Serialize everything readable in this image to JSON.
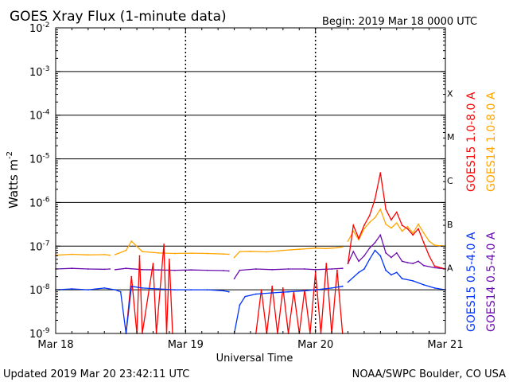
{
  "header": {
    "title": "GOES Xray Flux (1-minute data)",
    "begin": "Begin:  2019 Mar 18 0000 UTC"
  },
  "footer": {
    "updated": "Updated 2019 Mar 20 23:42:11 UTC",
    "credit": "NOAA/SWPC Boulder, CO USA"
  },
  "colors": {
    "goes15_long": "#ff0000",
    "goes14_long": "#ffa500",
    "goes15_short": "#0033ff",
    "goes14_short": "#6a0dad",
    "grid": "#000000"
  },
  "chart_data": {
    "type": "line",
    "title": "GOES Xray Flux (1-minute data)",
    "xlabel": "Universal Time",
    "ylabel": "Watts m",
    "ylabel_sup": "-2",
    "yscale": "log",
    "ylim": [
      1e-09,
      0.01
    ],
    "xlim": [
      0,
      72
    ],
    "x_unit": "hours since 2019 Mar 18 0000 UTC",
    "x_ticks": [
      {
        "x": 0,
        "label": "Mar 18"
      },
      {
        "x": 24,
        "label": "Mar 19"
      },
      {
        "x": 48,
        "label": "Mar 20"
      },
      {
        "x": 72,
        "label": "Mar 21"
      }
    ],
    "y_ticks": [
      {
        "exp": -2,
        "label": "10",
        "sup": "-2"
      },
      {
        "exp": -3,
        "label": "10",
        "sup": "-3"
      },
      {
        "exp": -4,
        "label": "10",
        "sup": "-4"
      },
      {
        "exp": -5,
        "label": "10",
        "sup": "-5"
      },
      {
        "exp": -6,
        "label": "10",
        "sup": "-6"
      },
      {
        "exp": -7,
        "label": "10",
        "sup": "-7"
      },
      {
        "exp": -8,
        "label": "10",
        "sup": "-8"
      },
      {
        "exp": -9,
        "label": "10",
        "sup": "-9"
      }
    ],
    "flare_classes": [
      {
        "label": "X",
        "exp": -3.5
      },
      {
        "label": "M",
        "exp": -4.5
      },
      {
        "label": "C",
        "exp": -5.5
      },
      {
        "label": "B",
        "exp": -6.5
      },
      {
        "label": "A",
        "exp": -7.5
      }
    ],
    "horizontal_grid_exps": [
      -3,
      -4,
      -5,
      -6,
      -7,
      -8
    ],
    "grid": true,
    "legend_placement": "right, rotated vertical",
    "legend": [
      {
        "label": "GOES15 1.0-8.0 A",
        "color": "#ff0000"
      },
      {
        "label": "GOES14 1.0-8.0 A",
        "color": "#ffa500"
      },
      {
        "label": "GOES15 0.5-4.0 A",
        "color": "#0033ff"
      },
      {
        "label": "GOES14 0.5-4.0 A",
        "color": "#6a0dad"
      }
    ],
    "series": [
      {
        "name": "GOES14 1.0-8.0 A",
        "color": "#ffa500",
        "segments": [
          [
            [
              0,
              6.2e-08
            ],
            [
              3,
              6.5e-08
            ],
            [
              6,
              6.3e-08
            ],
            [
              9,
              6.4e-08
            ],
            [
              10,
              6.2e-08
            ]
          ],
          [
            [
              11,
              6.4e-08
            ],
            [
              13,
              8e-08
            ],
            [
              14,
              1.3e-07
            ],
            [
              16,
              7.5e-08
            ],
            [
              19,
              7e-08
            ],
            [
              22,
              6.8e-08
            ],
            [
              25,
              6.9e-08
            ],
            [
              28,
              6.8e-08
            ],
            [
              31,
              6.6e-08
            ],
            [
              32,
              6.5e-08
            ]
          ],
          [
            [
              33,
              5.5e-08
            ],
            [
              34,
              7.5e-08
            ],
            [
              36,
              7.6e-08
            ],
            [
              39,
              7.4e-08
            ],
            [
              42,
              8e-08
            ],
            [
              45,
              8.5e-08
            ],
            [
              47,
              8.8e-08
            ],
            [
              48,
              9e-08
            ],
            [
              50,
              8.8e-08
            ],
            [
              52,
              9.2e-08
            ],
            [
              53,
              9.6e-08
            ]
          ],
          [
            [
              54,
              1.3e-07
            ],
            [
              55,
              2.2e-07
            ],
            [
              56,
              1.4e-07
            ],
            [
              57,
              2.5e-07
            ],
            [
              58,
              3.5e-07
            ],
            [
              59,
              4.5e-07
            ],
            [
              60,
              7e-07
            ],
            [
              61,
              3.2e-07
            ],
            [
              62,
              2.6e-07
            ],
            [
              63,
              3.4e-07
            ],
            [
              64,
              2.2e-07
            ],
            [
              65,
              2.8e-07
            ],
            [
              66,
              2e-07
            ],
            [
              67,
              3.2e-07
            ],
            [
              68,
              2e-07
            ],
            [
              69,
              1.3e-07
            ],
            [
              70,
              1.05e-07
            ],
            [
              72,
              1e-07
            ]
          ]
        ]
      },
      {
        "name": "GOES14 0.5-4.0 A",
        "color": "#6a0dad",
        "segments": [
          [
            [
              0,
              3e-08
            ],
            [
              3,
              3.1e-08
            ],
            [
              6,
              3e-08
            ],
            [
              9,
              2.95e-08
            ],
            [
              10,
              3e-08
            ]
          ],
          [
            [
              11,
              2.9e-08
            ],
            [
              13,
              3.1e-08
            ],
            [
              16,
              2.9e-08
            ],
            [
              19,
              2.85e-08
            ],
            [
              22,
              2.8e-08
            ],
            [
              25,
              2.85e-08
            ],
            [
              28,
              2.8e-08
            ],
            [
              31,
              2.75e-08
            ],
            [
              32,
              2.7e-08
            ]
          ],
          [
            [
              33,
              1.8e-08
            ],
            [
              34,
              2.8e-08
            ],
            [
              37,
              3e-08
            ],
            [
              40,
              2.9e-08
            ],
            [
              43,
              3e-08
            ],
            [
              46,
              3e-08
            ],
            [
              48,
              2.9e-08
            ],
            [
              51,
              3e-08
            ],
            [
              53,
              3.1e-08
            ]
          ],
          [
            [
              54,
              4e-08
            ],
            [
              55,
              7.5e-08
            ],
            [
              56,
              4.5e-08
            ],
            [
              57,
              6e-08
            ],
            [
              58,
              9e-08
            ],
            [
              59,
              1.2e-07
            ],
            [
              60,
              1.8e-07
            ],
            [
              61,
              7e-08
            ],
            [
              62,
              5.5e-08
            ],
            [
              63,
              7e-08
            ],
            [
              64,
              4.5e-08
            ],
            [
              65,
              4.2e-08
            ],
            [
              66,
              4e-08
            ],
            [
              67,
              4.5e-08
            ],
            [
              68,
              3.6e-08
            ],
            [
              70,
              3.2e-08
            ],
            [
              72,
              3e-08
            ]
          ]
        ]
      },
      {
        "name": "GOES15 1.0-8.0 A",
        "color": "#ff0000",
        "segments": [
          [
            [
              13,
              1e-09
            ],
            [
              14,
              2e-08
            ],
            [
              15,
              1e-09
            ],
            [
              15.5,
              6e-08
            ],
            [
              16,
              1e-09
            ],
            [
              18,
              4e-08
            ],
            [
              18.6,
              1e-09
            ],
            [
              20,
              1.1e-07
            ],
            [
              20.5,
              1e-09
            ],
            [
              21,
              5e-08
            ],
            [
              21.6,
              1e-09
            ]
          ],
          [
            [
              37,
              1e-09
            ],
            [
              38,
              1e-08
            ],
            [
              39,
              1e-09
            ],
            [
              40,
              1.2e-08
            ],
            [
              41,
              1e-09
            ],
            [
              42,
              1.1e-08
            ],
            [
              43,
              1e-09
            ],
            [
              44,
              9e-09
            ],
            [
              45,
              1e-09
            ],
            [
              46,
              1e-08
            ],
            [
              47,
              1e-09
            ],
            [
              48,
              2.5e-08
            ],
            [
              49,
              1e-09
            ],
            [
              50,
              4e-08
            ],
            [
              51,
              1e-09
            ],
            [
              52,
              2.8e-08
            ],
            [
              53,
              1e-09
            ]
          ],
          [
            [
              54,
              4e-08
            ],
            [
              55,
              3e-07
            ],
            [
              56,
              1.5e-07
            ],
            [
              57,
              3e-07
            ],
            [
              58,
              5e-07
            ],
            [
              59,
              1.2e-06
            ],
            [
              60,
              4.8e-06
            ],
            [
              61,
              7e-07
            ],
            [
              62,
              4e-07
            ],
            [
              63,
              6e-07
            ],
            [
              64,
              3e-07
            ],
            [
              65,
              2.5e-07
            ],
            [
              66,
              1.8e-07
            ],
            [
              67,
              2.5e-07
            ],
            [
              68,
              1.2e-07
            ],
            [
              69,
              6e-08
            ],
            [
              70,
              3.5e-08
            ],
            [
              72,
              3e-08
            ]
          ]
        ]
      },
      {
        "name": "GOES15 0.5-4.0 A",
        "color": "#0033ff",
        "segments": [
          [
            [
              0,
              1e-08
            ],
            [
              3,
              1.05e-08
            ],
            [
              6,
              1e-08
            ],
            [
              9,
              1.1e-08
            ],
            [
              11,
              1e-08
            ],
            [
              12,
              9e-09
            ],
            [
              13,
              1e-09
            ],
            [
              14,
              1.2e-08
            ],
            [
              16,
              1.1e-08
            ],
            [
              19,
              1.05e-08
            ],
            [
              22,
              1e-08
            ],
            [
              25,
              1e-08
            ],
            [
              28,
              1e-08
            ],
            [
              31,
              9.5e-09
            ],
            [
              32,
              9e-09
            ]
          ],
          [
            [
              33,
              1e-09
            ],
            [
              34,
              4.5e-09
            ],
            [
              35,
              7e-09
            ],
            [
              37,
              8e-09
            ],
            [
              40,
              8.5e-09
            ],
            [
              43,
              9e-09
            ],
            [
              46,
              9.5e-09
            ],
            [
              48,
              1e-08
            ],
            [
              51,
              1.1e-08
            ],
            [
              53,
              1.2e-08
            ]
          ],
          [
            [
              54,
              1.5e-08
            ],
            [
              56,
              2.5e-08
            ],
            [
              57,
              3e-08
            ],
            [
              58,
              5e-08
            ],
            [
              59,
              8e-08
            ],
            [
              60,
              6e-08
            ],
            [
              61,
              2.8e-08
            ],
            [
              62,
              2.2e-08
            ],
            [
              63,
              2.5e-08
            ],
            [
              64,
              1.8e-08
            ],
            [
              66,
              1.6e-08
            ],
            [
              68,
              1.3e-08
            ],
            [
              70,
              1.1e-08
            ],
            [
              72,
              1e-08
            ]
          ]
        ]
      }
    ]
  }
}
